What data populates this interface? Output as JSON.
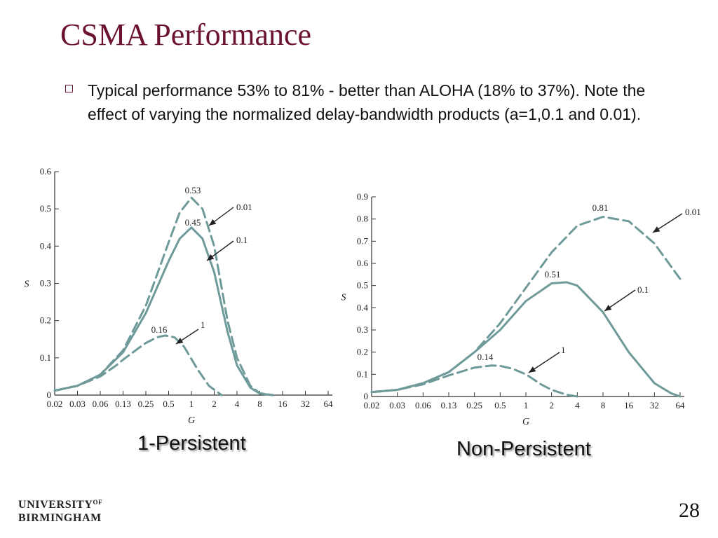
{
  "slide": {
    "title": "CSMA Performance",
    "bullet": "Typical performance 53% to 81% -  better than ALOHA (18% to 37%).  Note the effect of varying the normalized delay-bandwidth products (a=1,0.1 and 0.01).",
    "page_number": "28"
  },
  "logo": {
    "line1": "UNIVERSITY",
    "of": "OF",
    "line2": "BIRMINGHAM"
  },
  "colors": {
    "title": "#6b1230",
    "curve": "#6f9a9a",
    "axis": "#333333"
  },
  "chart_data": [
    {
      "type": "line",
      "caption": "1-Persistent",
      "xlabel": "G",
      "ylabel": "S",
      "x_scale": "log",
      "x_ticks": [
        0.02,
        0.03,
        0.06,
        0.13,
        0.25,
        0.5,
        1,
        2,
        4,
        8,
        16,
        32,
        64
      ],
      "x_tick_labels": [
        "0.02",
        "0.03",
        "0.06",
        "0.13",
        "0.25",
        "0.5",
        "1",
        "2",
        "4",
        "8",
        "16",
        "32",
        "64"
      ],
      "y_ticks": [
        0,
        0.1,
        0.2,
        0.3,
        0.4,
        0.5,
        0.6
      ],
      "y_tick_labels": [
        "0",
        "0.1",
        "0.2",
        "0.3",
        "0.4",
        "0.5",
        "0.6"
      ],
      "ylim": [
        0,
        0.6
      ],
      "series": [
        {
          "name": "0.01",
          "dash": true,
          "x": [
            0.02,
            0.03,
            0.06,
            0.13,
            0.25,
            0.5,
            0.7,
            1,
            1.4,
            2,
            3,
            4,
            6,
            8,
            12
          ],
          "y": [
            0.012,
            0.025,
            0.055,
            0.12,
            0.24,
            0.41,
            0.49,
            0.53,
            0.5,
            0.4,
            0.2,
            0.1,
            0.025,
            0.005,
            0
          ]
        },
        {
          "name": "0.1",
          "dash": false,
          "x": [
            0.02,
            0.03,
            0.06,
            0.13,
            0.25,
            0.5,
            0.7,
            1,
            1.4,
            2,
            3,
            4,
            6,
            8,
            12
          ],
          "y": [
            0.012,
            0.025,
            0.055,
            0.115,
            0.22,
            0.36,
            0.42,
            0.45,
            0.42,
            0.33,
            0.17,
            0.08,
            0.02,
            0.004,
            0
          ]
        },
        {
          "name": "1",
          "dash": true,
          "x": [
            0.02,
            0.03,
            0.06,
            0.1,
            0.13,
            0.2,
            0.25,
            0.35,
            0.45,
            0.6,
            0.8,
            1.2,
            1.7,
            2.5
          ],
          "y": [
            0.012,
            0.025,
            0.05,
            0.078,
            0.095,
            0.125,
            0.14,
            0.155,
            0.16,
            0.155,
            0.13,
            0.07,
            0.025,
            0
          ]
        }
      ],
      "annotations": [
        {
          "text": "0.53",
          "x": 1,
          "y": 0.53
        },
        {
          "text": "0.45",
          "x": 1,
          "y": 0.45
        },
        {
          "text": "0.16",
          "x": 0.45,
          "y": 0.16
        }
      ],
      "arrow_labels": [
        {
          "text": "0.01",
          "series": "0.01"
        },
        {
          "text": "0.1",
          "series": "0.1"
        },
        {
          "text": "1",
          "series": "1"
        }
      ]
    },
    {
      "type": "line",
      "caption": "Non-Persistent",
      "xlabel": "G",
      "ylabel": "S",
      "x_scale": "log",
      "x_ticks": [
        0.02,
        0.03,
        0.06,
        0.13,
        0.25,
        0.5,
        1,
        2,
        4,
        8,
        16,
        32,
        64
      ],
      "x_tick_labels": [
        "0.02",
        "0.03",
        "0.06",
        "0.13",
        "0.25",
        "0.5",
        "1",
        "2",
        "4",
        "8",
        "16",
        "32",
        "64"
      ],
      "y_ticks": [
        0,
        0.1,
        0.2,
        0.3,
        0.4,
        0.5,
        0.6,
        0.7,
        0.8,
        0.9
      ],
      "y_tick_labels": [
        "0",
        "0.1",
        "0.2",
        "0.3",
        "0.4",
        "0.5",
        "0.6",
        "0.7",
        "0.8",
        "0.9"
      ],
      "ylim": [
        0,
        0.9
      ],
      "series": [
        {
          "name": "0.01",
          "dash": true,
          "x": [
            0.02,
            0.03,
            0.06,
            0.13,
            0.25,
            0.5,
            1,
            2,
            4,
            8,
            16,
            32,
            64
          ],
          "y": [
            0.02,
            0.03,
            0.06,
            0.11,
            0.2,
            0.33,
            0.49,
            0.65,
            0.77,
            0.81,
            0.79,
            0.69,
            0.53
          ]
        },
        {
          "name": "0.1",
          "dash": false,
          "x": [
            0.02,
            0.03,
            0.06,
            0.13,
            0.25,
            0.5,
            1,
            2,
            3,
            4,
            8,
            16,
            32,
            50,
            64
          ],
          "y": [
            0.02,
            0.03,
            0.06,
            0.11,
            0.2,
            0.3,
            0.43,
            0.51,
            0.515,
            0.5,
            0.38,
            0.2,
            0.06,
            0.015,
            0
          ]
        },
        {
          "name": "1",
          "dash": true,
          "x": [
            0.02,
            0.03,
            0.06,
            0.13,
            0.25,
            0.4,
            0.5,
            0.7,
            1,
            1.5,
            2,
            3,
            4
          ],
          "y": [
            0.02,
            0.03,
            0.055,
            0.095,
            0.13,
            0.14,
            0.138,
            0.125,
            0.1,
            0.055,
            0.03,
            0.008,
            0
          ]
        }
      ],
      "annotations": [
        {
          "text": "0.81",
          "x": 8,
          "y": 0.81
        },
        {
          "text": "0.51",
          "x": 2.5,
          "y": 0.515
        },
        {
          "text": "0.14",
          "x": 0.4,
          "y": 0.14
        }
      ],
      "arrow_labels": [
        {
          "text": "0.01",
          "series": "0.01"
        },
        {
          "text": "0.1",
          "series": "0.1"
        },
        {
          "text": "1",
          "series": "1"
        }
      ]
    }
  ]
}
